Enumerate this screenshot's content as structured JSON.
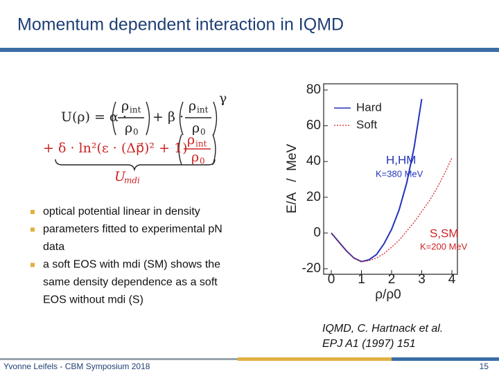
{
  "slide": {
    "title": "Momentum dependent interaction in IQMD",
    "formula": {
      "line1": [
        "U(ρ) = α ·",
        "ρ",
        "int",
        "ρ",
        "0",
        "+ β ·",
        "ρ",
        "int",
        "ρ",
        "0",
        "γ"
      ],
      "line2": [
        "+ δ · ln²(ε · (Δp⃗)² + 1)",
        "ρ",
        "int",
        "ρ",
        "0"
      ],
      "brace_label": [
        "U",
        "mdi"
      ]
    },
    "bullets": [
      [
        "optical potential linear in density"
      ],
      [
        "parameters fitted to experimental pN",
        "data"
      ],
      [
        "a soft EOS with mdi (SM) shows the",
        "same density dependence as a soft",
        "EOS without mdi (S)"
      ]
    ],
    "citation": [
      "IQMD, C. Hartnack et al.",
      "EPJ A1 (1997) 151"
    ],
    "footer": "Yvonne Leifels - CBM Symposium 2018",
    "page_number": "15"
  },
  "chart_data": {
    "type": "line",
    "xlabel": "ρ/ρ0",
    "ylabel": "E/A   /  MeV",
    "x": [
      0,
      0.25,
      0.5,
      0.75,
      1,
      1.25,
      1.5,
      1.75,
      2,
      2.25,
      2.5,
      2.75,
      3,
      3.25,
      3.5,
      3.75,
      4
    ],
    "series": [
      {
        "name": "Hard",
        "color": "#2233bb",
        "dash": "solid",
        "values": [
          0,
          -5,
          -10,
          -14,
          -16,
          -15,
          -12,
          -6,
          2,
          13,
          28,
          48,
          75,
          null,
          null,
          null,
          null
        ]
      },
      {
        "name": "Soft",
        "color": "#cc2222",
        "dash": "dotted",
        "values": [
          0,
          -5,
          -10,
          -14,
          -16,
          -15.5,
          -14,
          -11.5,
          -8,
          -4,
          1,
          6,
          12,
          18,
          25,
          33,
          42
        ]
      }
    ],
    "xlim": [
      0,
      4
    ],
    "xticks": [
      0,
      1,
      2,
      3,
      4
    ],
    "ylim": [
      -20,
      80
    ],
    "yticks": [
      -20,
      0,
      20,
      40,
      60,
      80
    ],
    "legend": "upper left",
    "annotations": [
      {
        "text": "H,HM",
        "color": "#2233bb"
      },
      {
        "text": "K=380 MeV",
        "color": "#2233bb"
      },
      {
        "text": "S,SM",
        "color": "#cc2222"
      },
      {
        "text": "K=200 MeV",
        "color": "#cc2222"
      }
    ]
  }
}
